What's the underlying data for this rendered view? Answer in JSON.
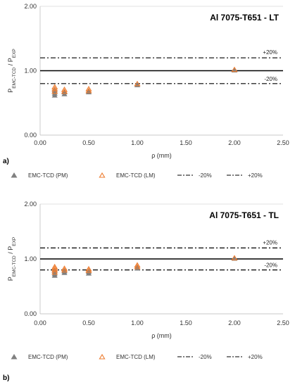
{
  "colors": {
    "pm": "#808080",
    "lm": "#ED7D31",
    "line": "#000000",
    "grid": "#d9d9d9"
  },
  "legend": [
    {
      "key": "pm",
      "label": "EMC-TCD (PM)"
    },
    {
      "key": "lm",
      "label": "EMC-TCD (LM)"
    },
    {
      "key": "m20",
      "label": "-20%"
    },
    {
      "key": "p20",
      "label": "+20%"
    }
  ],
  "chart_data": [
    {
      "type": "scatter",
      "panel_label": "a)",
      "title": "Al 7075-T651 - LT",
      "xlabel": "ρ (mm)",
      "ylabel_main": "P",
      "ylabel_sub1": "EMC-TCD",
      "ylabel_sep": " / ",
      "ylabel_sub2": "EXP",
      "xlim": [
        0,
        2.5
      ],
      "ylim": [
        0,
        2
      ],
      "xticks": [
        "0.00",
        "0.50",
        "1.00",
        "1.50",
        "2.00",
        "2.50"
      ],
      "yticks": [
        "0.00",
        "1.00",
        "2.00"
      ],
      "xtick_values": [
        0,
        0.5,
        1.0,
        1.5,
        2.0,
        2.5
      ],
      "ytick_values": [
        0,
        1,
        2
      ],
      "grid": "horizontal",
      "reference_lines": [
        {
          "y": 1.2,
          "style": "dash-dot",
          "label": "+20%"
        },
        {
          "y": 1.0,
          "style": "solid",
          "label": ""
        },
        {
          "y": 0.8,
          "style": "dash-dot",
          "label": "-20%"
        }
      ],
      "series": [
        {
          "name": "EMC-TCD (PM)",
          "key": "pm",
          "x": [
            0.15,
            0.15,
            0.15,
            0.15,
            0.25,
            0.25,
            0.5,
            0.5,
            1.0,
            2.0
          ],
          "y": [
            0.62,
            0.65,
            0.68,
            0.7,
            0.64,
            0.67,
            0.67,
            0.69,
            0.78,
            1.01
          ]
        },
        {
          "name": "EMC-TCD (LM)",
          "key": "lm",
          "x": [
            0.15,
            0.15,
            0.15,
            0.25,
            0.25,
            0.5,
            0.5,
            1.0,
            2.0
          ],
          "y": [
            0.68,
            0.72,
            0.75,
            0.68,
            0.71,
            0.69,
            0.72,
            0.8,
            1.02
          ]
        }
      ]
    },
    {
      "type": "scatter",
      "panel_label": "b)",
      "title": "Al 7075-T651 - TL",
      "xlabel": "ρ (mm)",
      "ylabel_main": "P",
      "ylabel_sub1": "EMC-TCD",
      "ylabel_sep": " / ",
      "ylabel_sub2": "EXP",
      "xlim": [
        0,
        2.5
      ],
      "ylim": [
        0,
        2
      ],
      "xticks": [
        "0.00",
        "0.50",
        "1.00",
        "1.50",
        "2.00",
        "2.50"
      ],
      "yticks": [
        "0.00",
        "1.00",
        "2.00"
      ],
      "xtick_values": [
        0,
        0.5,
        1.0,
        1.5,
        2.0,
        2.5
      ],
      "ytick_values": [
        0,
        1,
        2
      ],
      "grid": "horizontal",
      "reference_lines": [
        {
          "y": 1.2,
          "style": "dash-dot",
          "label": "+20%"
        },
        {
          "y": 1.0,
          "style": "solid",
          "label": ""
        },
        {
          "y": 0.8,
          "style": "dash-dot",
          "label": "-20%"
        }
      ],
      "series": [
        {
          "name": "EMC-TCD (PM)",
          "key": "pm",
          "x": [
            0.15,
            0.15,
            0.15,
            0.15,
            0.25,
            0.25,
            0.5,
            0.5,
            1.0,
            1.0,
            2.0
          ],
          "y": [
            0.7,
            0.73,
            0.76,
            0.79,
            0.75,
            0.78,
            0.74,
            0.77,
            0.83,
            0.86,
            1.01
          ]
        },
        {
          "name": "EMC-TCD (LM)",
          "key": "lm",
          "x": [
            0.15,
            0.15,
            0.15,
            0.15,
            0.25,
            0.25,
            0.5,
            0.5,
            1.0,
            1.0,
            2.0
          ],
          "y": [
            0.76,
            0.8,
            0.83,
            0.86,
            0.8,
            0.83,
            0.79,
            0.82,
            0.86,
            0.89,
            1.02
          ]
        }
      ]
    }
  ]
}
